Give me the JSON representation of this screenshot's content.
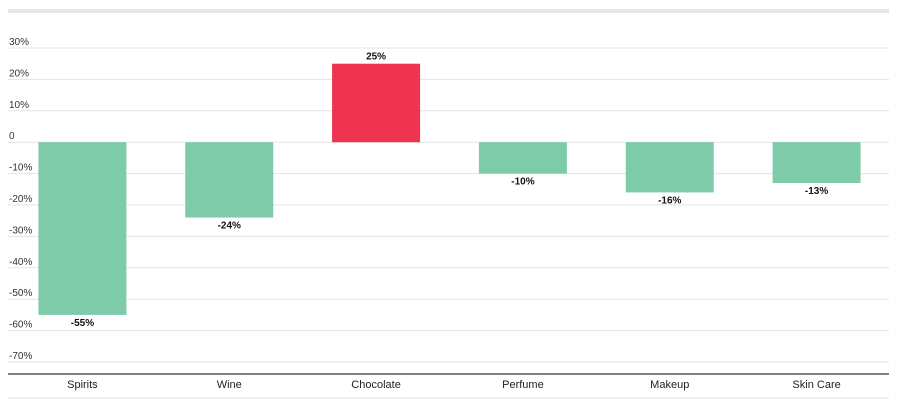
{
  "chart_data": {
    "type": "bar",
    "categories": [
      "Spirits",
      "Wine",
      "Chocolate",
      "Perfume",
      "Makeup",
      "Skin Care"
    ],
    "values": [
      -55,
      -24,
      25,
      -10,
      -16,
      -13
    ],
    "value_labels": [
      "-55%",
      "-24%",
      "25%",
      "-10%",
      "-16%",
      "-13%"
    ],
    "y_ticks": [
      30,
      20,
      10,
      0,
      -10,
      -20,
      -30,
      -40,
      -50,
      -60,
      -70
    ],
    "y_tick_labels": [
      "30%",
      "20%",
      "10%",
      "0",
      "-10%",
      "-20%",
      "-30%",
      "-40%",
      "-50%",
      "-60%",
      "-70%"
    ],
    "ylim": [
      -70,
      30
    ],
    "grid": true,
    "title": "",
    "xlabel": "",
    "ylabel": "",
    "colors": {
      "positive": "#ee344e",
      "negative": "#7ecbaa",
      "grid": "#e3e3e3",
      "axis": "#333333",
      "top_bar": "#e6e6e6"
    }
  }
}
